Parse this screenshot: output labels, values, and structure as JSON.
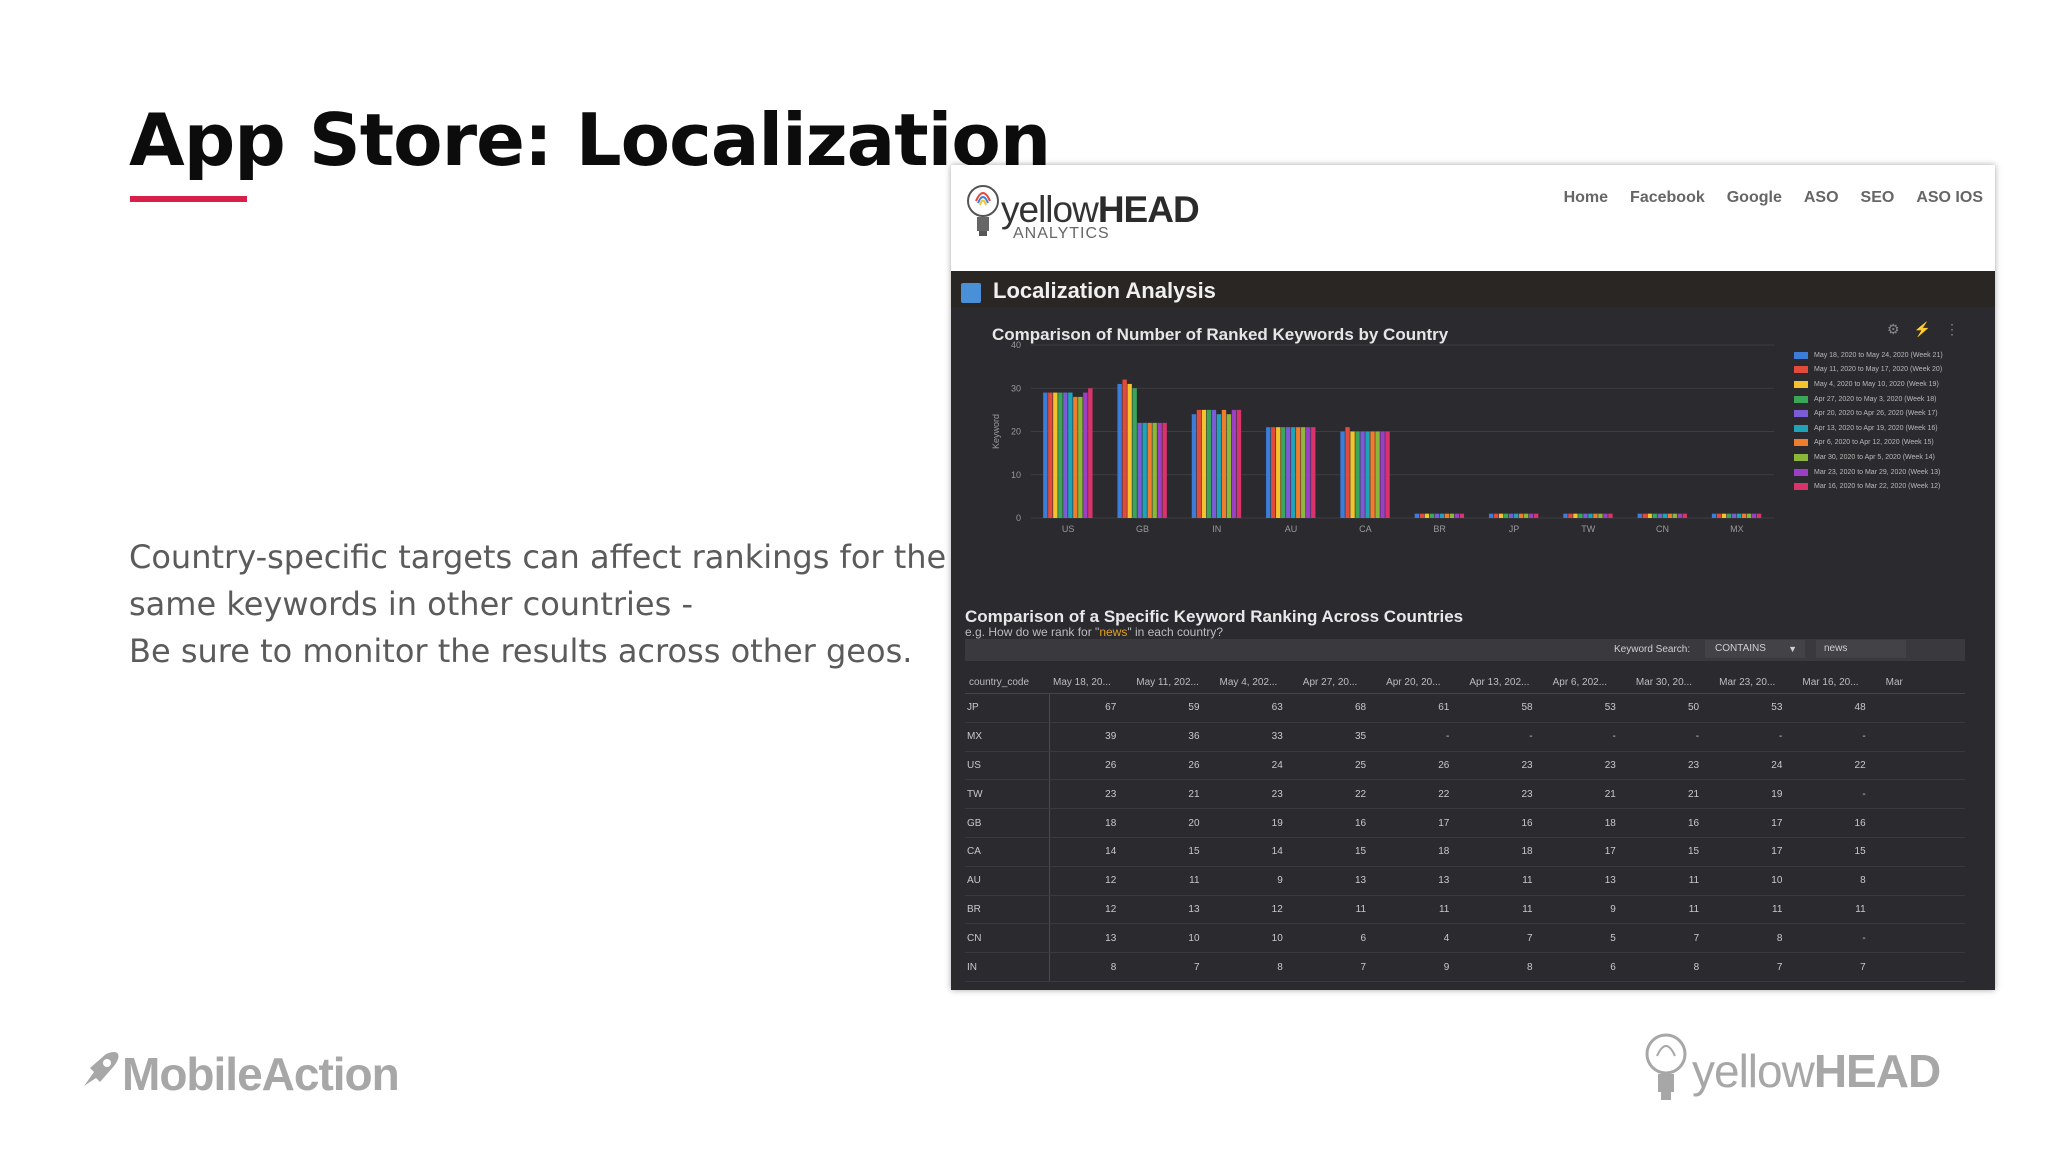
{
  "slide": {
    "title": "App Store: Localization",
    "body_lines": [
      "Country-specific targets can affect rankings for the",
      "same keywords in other countries -",
      "Be sure to monitor the results across other geos."
    ],
    "accent_color": "#d71f47"
  },
  "screenshot": {
    "brand_light": "yellow",
    "brand_bold": "HEAD",
    "brand_sub": "ANALYTICS",
    "nav": [
      "Home",
      "Facebook",
      "Google",
      "ASO",
      "SEO",
      "ASO IOS"
    ],
    "section_title": "Localization Analysis",
    "table_title": "Comparison of a Specific Keyword Ranking Across Countries",
    "table_subtitle_before": "e.g. How do we rank for \"",
    "table_subtitle_keyword": "news",
    "table_subtitle_after": "\" in each country?",
    "search_label": "Keyword Search:",
    "search_mode": "CONTAINS",
    "search_value": "news",
    "table_headers": [
      "country_code",
      "May 18, 20...",
      "May 11, 202...",
      "May 4, 202...",
      "Apr 27, 20...",
      "Apr 20, 20...",
      "Apr 13, 202...",
      "Apr 6, 202...",
      "Mar 30, 20...",
      "Mar 23, 20...",
      "Mar 16, 20...",
      "Mar"
    ],
    "table_rows": [
      [
        "JP",
        "67",
        "59",
        "63",
        "68",
        "61",
        "58",
        "53",
        "50",
        "53",
        "48"
      ],
      [
        "MX",
        "39",
        "36",
        "33",
        "35",
        "-",
        "-",
        "-",
        "-",
        "-",
        "-"
      ],
      [
        "US",
        "26",
        "26",
        "24",
        "25",
        "26",
        "23",
        "23",
        "23",
        "24",
        "22"
      ],
      [
        "TW",
        "23",
        "21",
        "23",
        "22",
        "22",
        "23",
        "21",
        "21",
        "19",
        "-"
      ],
      [
        "GB",
        "18",
        "20",
        "19",
        "16",
        "17",
        "16",
        "18",
        "16",
        "17",
        "16"
      ],
      [
        "CA",
        "14",
        "15",
        "14",
        "15",
        "18",
        "18",
        "17",
        "15",
        "17",
        "15"
      ],
      [
        "AU",
        "12",
        "11",
        "9",
        "13",
        "13",
        "11",
        "13",
        "11",
        "10",
        "8"
      ],
      [
        "BR",
        "12",
        "13",
        "12",
        "11",
        "11",
        "11",
        "9",
        "11",
        "11",
        "11"
      ],
      [
        "CN",
        "13",
        "10",
        "10",
        "6",
        "4",
        "7",
        "5",
        "7",
        "8",
        "-"
      ],
      [
        "IN",
        "8",
        "7",
        "8",
        "7",
        "9",
        "8",
        "6",
        "8",
        "7",
        "7"
      ]
    ]
  },
  "chart_data": {
    "type": "bar",
    "title": "Comparison of Number of Ranked Keywords by Country",
    "ylabel": "Keyword",
    "ylim": [
      0,
      40
    ],
    "yticks": [
      0,
      10,
      20,
      30,
      40
    ],
    "categories": [
      "US",
      "GB",
      "IN",
      "AU",
      "CA",
      "BR",
      "JP",
      "TW",
      "CN",
      "MX"
    ],
    "series": [
      {
        "name": "May 18, 2020 to May 24, 2020 (Week 21)",
        "color": "#3b7dd8",
        "values": [
          29,
          31,
          24,
          21,
          20,
          1,
          1,
          1,
          1,
          1
        ]
      },
      {
        "name": "May 11, 2020 to May 17, 2020 (Week 20)",
        "color": "#e24b3b",
        "values": [
          29,
          32,
          25,
          21,
          21,
          1,
          1,
          1,
          1,
          1
        ]
      },
      {
        "name": "May 4, 2020 to May 10, 2020 (Week 19)",
        "color": "#f2c22f",
        "values": [
          29,
          31,
          25,
          21,
          20,
          1,
          1,
          1,
          1,
          1
        ]
      },
      {
        "name": "Apr 27, 2020 to May 3, 2020 (Week 18)",
        "color": "#3aa657",
        "values": [
          29,
          30,
          25,
          21,
          20,
          1,
          1,
          1,
          1,
          1
        ]
      },
      {
        "name": "Apr 20, 2020 to Apr 26, 2020 (Week 17)",
        "color": "#7c5cd6",
        "values": [
          29,
          22,
          25,
          21,
          20,
          1,
          1,
          1,
          1,
          1
        ]
      },
      {
        "name": "Apr 13, 2020 to Apr 19, 2020 (Week 16)",
        "color": "#1fa3b8",
        "values": [
          29,
          22,
          24,
          21,
          20,
          1,
          1,
          1,
          1,
          1
        ]
      },
      {
        "name": "Apr 6, 2020 to Apr 12, 2020 (Week 15)",
        "color": "#ef7d2d",
        "values": [
          28,
          22,
          25,
          21,
          20,
          1,
          1,
          1,
          1,
          1
        ]
      },
      {
        "name": "Mar 30, 2020 to Apr 5, 2020 (Week 14)",
        "color": "#8bb83a",
        "values": [
          28,
          22,
          24,
          21,
          20,
          1,
          1,
          1,
          1,
          1
        ]
      },
      {
        "name": "Mar 23, 2020 to Mar 29, 2020 (Week 13)",
        "color": "#9c3fc7",
        "values": [
          29,
          22,
          25,
          21,
          20,
          1,
          1,
          1,
          1,
          1
        ]
      },
      {
        "name": "Mar 16, 2020 to Mar 22, 2020 (Week 12)",
        "color": "#d8336b",
        "values": [
          30,
          22,
          25,
          21,
          20,
          1,
          1,
          1,
          1,
          1
        ]
      }
    ]
  },
  "footer": {
    "left_logo": "MobileAction",
    "right_logo_light": "yellow",
    "right_logo_bold": "HEAD"
  }
}
